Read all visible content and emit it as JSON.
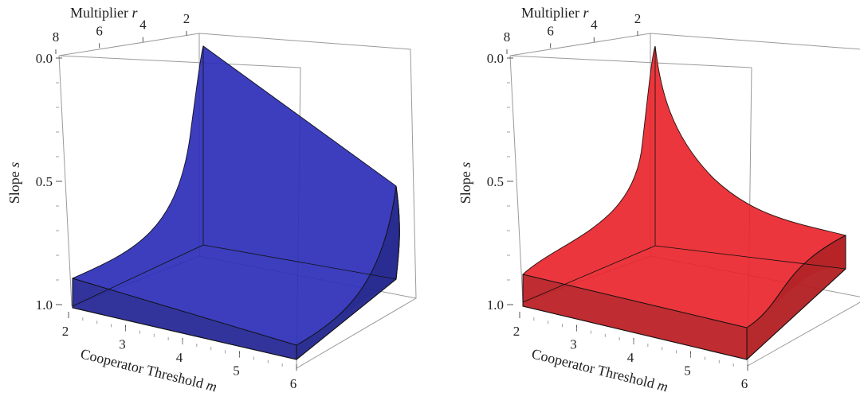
{
  "chart_data": [
    {
      "type": "surface3d",
      "color": "#2b2fb8",
      "xlabel": "Cooperator Threshold",
      "xlabel_var": "m",
      "ylabel": "Multiplier",
      "ylabel_var": "r",
      "zlabel": "Slope",
      "zlabel_var": "s",
      "x_ticks": [
        "2",
        "3",
        "4",
        "5",
        "6"
      ],
      "y_ticks": [
        "8",
        "6",
        "4",
        "2"
      ],
      "z_ticks": [
        "0.0",
        "0.5",
        "1.0"
      ],
      "xlim": [
        2,
        6
      ],
      "ylim": [
        1,
        8
      ],
      "zlim": [
        0,
        1
      ],
      "z_axis_reversed": true
    },
    {
      "type": "surface3d",
      "color": "#e8262b",
      "xlabel": "Cooperator Threshold",
      "xlabel_var": "m",
      "ylabel": "Multiplier",
      "ylabel_var": "r",
      "zlabel": "Slope",
      "zlabel_var": "s",
      "x_ticks": [
        "2",
        "3",
        "4",
        "5",
        "6"
      ],
      "y_ticks": [
        "8",
        "6",
        "4",
        "2"
      ],
      "z_ticks": [
        "0.0",
        "0.5",
        "1.0"
      ],
      "xlim": [
        2,
        6
      ],
      "ylim": [
        1,
        8
      ],
      "zlim": [
        0,
        1
      ],
      "z_axis_reversed": true
    }
  ]
}
